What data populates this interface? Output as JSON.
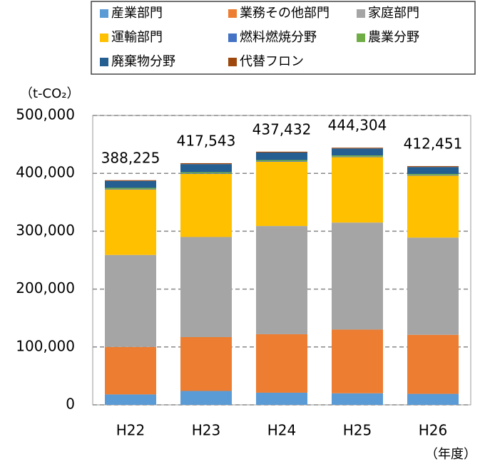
{
  "chart_data": {
    "type": "stacked_bar",
    "y_axis_label": "（t-CO₂）",
    "x_axis_label": "（年度）",
    "categories": [
      "H22",
      "H23",
      "H24",
      "H25",
      "H26"
    ],
    "series": [
      {
        "name": "産業部門",
        "color": "#5b9bd5",
        "values": [
          18000,
          24000,
          21000,
          20000,
          19000
        ]
      },
      {
        "name": "業務その他部門",
        "color": "#ed7d31",
        "values": [
          82000,
          93000,
          101000,
          110000,
          102000
        ]
      },
      {
        "name": "家庭部門",
        "color": "#a5a5a5",
        "values": [
          159000,
          173000,
          187000,
          185000,
          168000
        ]
      },
      {
        "name": "運輸部門",
        "color": "#ffc000",
        "values": [
          113000,
          109000,
          111000,
          113000,
          107000
        ]
      },
      {
        "name": "燃料燃焼分野",
        "color": "#4472c4",
        "values": [
          1000,
          1000,
          1000,
          1000,
          1000
        ]
      },
      {
        "name": "農業分野",
        "color": "#70ad47",
        "values": [
          2000,
          2000,
          2000,
          2000,
          2000
        ]
      },
      {
        "name": "廃棄物分野",
        "color": "#255e91",
        "values": [
          12000,
          14000,
          13000,
          12000,
          12000
        ]
      },
      {
        "name": "代替フロン",
        "color": "#9e480e",
        "values": [
          1225,
          1543,
          1432,
          1304,
          1451
        ]
      }
    ],
    "totals": {
      "values": [
        388225,
        417543,
        437432,
        444304,
        412451
      ],
      "value_labels": [
        "388,225",
        "417,543",
        "437,432",
        "444,304",
        "412,451"
      ]
    },
    "ylim": [
      0,
      500000
    ],
    "yticks": [
      0,
      {
        "value": 100000,
        "label": "100,000"
      },
      {
        "value": 200000,
        "label": "200,000"
      },
      {
        "value": 300000,
        "label": "300,000"
      },
      {
        "value": 400000,
        "label": "400,000"
      },
      {
        "value": 500000,
        "label": "500,000"
      }
    ],
    "grid": true,
    "legend": "top"
  }
}
